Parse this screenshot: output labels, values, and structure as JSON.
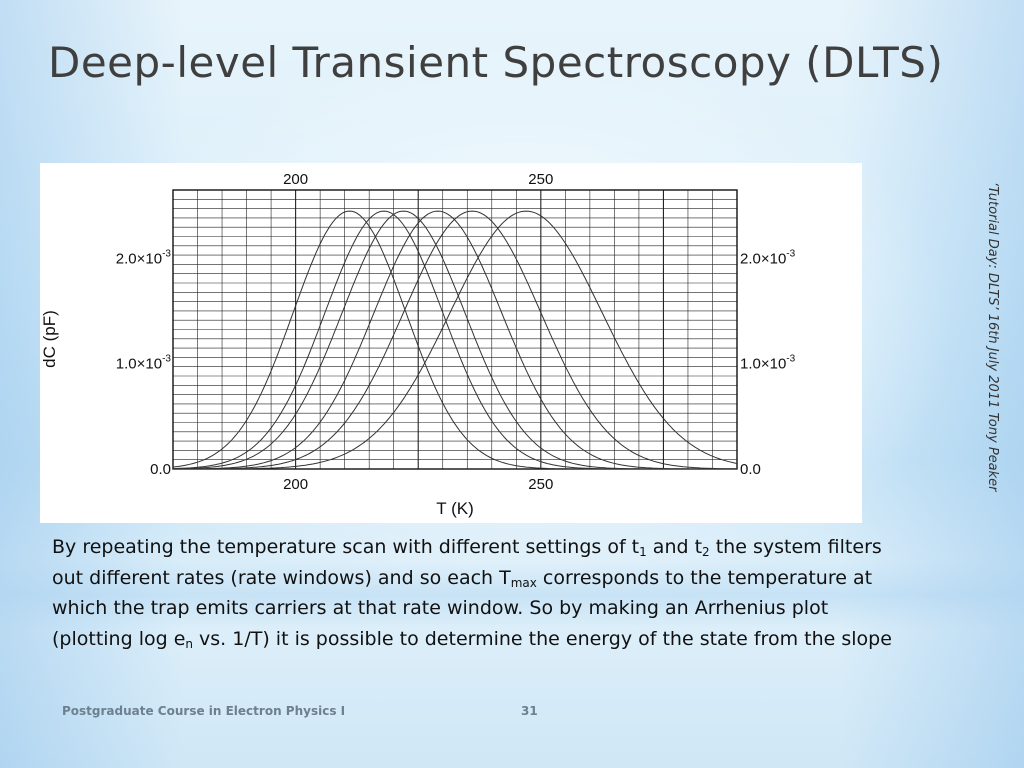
{
  "slide": {
    "title": "Deep-level Transient Spectroscopy (DLTS)",
    "side_credit": "‘Tutorial Day: DLTS’ 16th July 2011 Tony Peaker",
    "body": {
      "part1": "By repeating the temperature scan with different settings of t",
      "sub1": "1",
      "part2": " and t",
      "sub2": "2",
      "part3": " the system filters out different rates (rate windows) and so each T",
      "sub3": "max",
      "part4": " corresponds to the temperature at which the trap emits carriers at that rate window. So by making an Arrhenius plot (plotting log e",
      "sub4": "n",
      "part5": " vs. 1/T) it is possible to determine the energy of the state from the slope"
    },
    "footer_left": "Postgraduate Course in Electron Physics I",
    "footer_page": "31"
  },
  "chart_data": {
    "type": "line",
    "xlabel": "T (K)",
    "ylabel": "dC (pF)",
    "x_ticks": [
      "200",
      "250"
    ],
    "y_ticks": [
      "0.0",
      "1.0×10",
      "2.0×10"
    ],
    "y_tick_exponent": "-3",
    "xlim": [
      175,
      290
    ],
    "ylim": [
      0,
      0.00265
    ],
    "grid": true,
    "series": [
      {
        "peak_T": 211,
        "peak_value": 0.00245,
        "width": 11.5
      },
      {
        "peak_T": 218,
        "peak_value": 0.00245,
        "width": 12.0
      },
      {
        "peak_T": 222,
        "peak_value": 0.00245,
        "width": 12.5
      },
      {
        "peak_T": 229,
        "peak_value": 0.00245,
        "width": 13.0
      },
      {
        "peak_T": 236,
        "peak_value": 0.00245,
        "width": 14.0
      },
      {
        "peak_T": 247,
        "peak_value": 0.00245,
        "width": 15.5
      }
    ]
  }
}
